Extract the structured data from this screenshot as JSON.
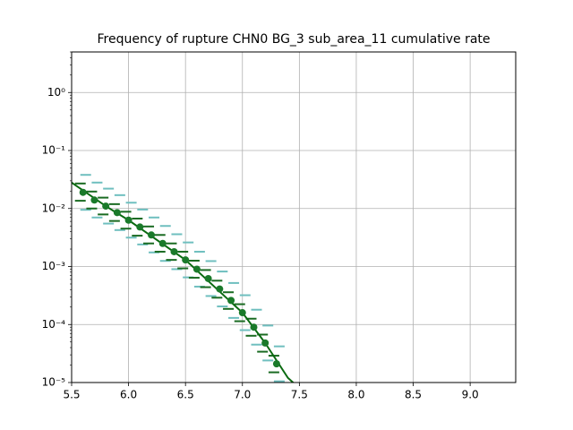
{
  "chart_data": {
    "type": "errorbar",
    "title": "Frequency of rupture CHN0 BG_3 sub_area_11 cumulative rate",
    "x": [
      5.6,
      5.7,
      5.8,
      5.9,
      6.0,
      6.1,
      6.2,
      6.3,
      6.4,
      6.5,
      6.6,
      6.7,
      6.8,
      6.9,
      7.0,
      7.1,
      7.2,
      7.3
    ],
    "values": [
      0.019,
      0.014,
      0.011,
      0.0085,
      0.0063,
      0.0048,
      0.0035,
      0.0025,
      0.0018,
      0.0013,
      0.0009,
      0.00062,
      0.00041,
      0.00026,
      0.00016,
      9e-05,
      4.8e-05,
      2.1e-05
    ],
    "color": "#1a7a2a",
    "inner_low": [
      0.0136,
      0.01,
      0.0079,
      0.0061,
      0.0045,
      0.0034,
      0.0025,
      0.0018,
      0.0013,
      0.00093,
      0.00064,
      0.00044,
      0.00029,
      0.000186,
      0.000114,
      6.4e-05,
      3.4e-05,
      1.5e-05
    ],
    "inner_high": [
      0.027,
      0.0196,
      0.0154,
      0.0119,
      0.0088,
      0.0067,
      0.0049,
      0.0035,
      0.0025,
      0.0018,
      0.00126,
      0.00087,
      0.00057,
      0.00036,
      0.000224,
      0.000126,
      6.7e-05,
      2.9e-05
    ],
    "inner_color": "#1a6b22",
    "outer_low": [
      0.0095,
      0.007,
      0.0055,
      0.00425,
      0.00315,
      0.0024,
      0.00175,
      0.00125,
      0.0009,
      0.00065,
      0.00045,
      0.00031,
      0.000205,
      0.00013,
      8e-05,
      4.5e-05,
      2.4e-05,
      1.05e-05
    ],
    "outer_high": [
      0.038,
      0.028,
      0.022,
      0.017,
      0.0126,
      0.0096,
      0.007,
      0.005,
      0.0036,
      0.0026,
      0.0018,
      0.00124,
      0.00082,
      0.00052,
      0.00032,
      0.00018,
      9.6e-05,
      4.2e-05
    ],
    "outer_color": "#6fbfbf",
    "fit": {
      "x": [
        5.5,
        5.8,
        6.0,
        6.5,
        7.0,
        7.2,
        7.3,
        7.4,
        7.5
      ],
      "values": [
        0.028,
        0.011,
        0.0063,
        0.0013,
        0.00016,
        4.8e-05,
        2.4e-05,
        1.2e-05,
        8e-06
      ],
      "color": "#0a6a10"
    },
    "xlim": [
      5.5,
      9.4
    ],
    "ylim": [
      1e-05,
      5
    ],
    "log_y": true,
    "grid": true,
    "xticks": [
      5.5,
      {
        "value": 6,
        "label": "6.0"
      },
      6.5,
      {
        "value": 7,
        "label": "7.0"
      },
      7.5,
      {
        "value": 8,
        "label": "8.0"
      },
      8.5,
      {
        "value": 9,
        "label": "9.0"
      }
    ],
    "yticks": [
      {
        "value": 1e-05,
        "label": "10⁻⁵"
      },
      {
        "value": 0.0001,
        "label": "10⁻⁴"
      },
      {
        "value": 0.001,
        "label": "10⁻³"
      },
      {
        "value": 0.01,
        "label": "10⁻²"
      },
      {
        "value": 0.1,
        "label": "10⁻¹"
      },
      {
        "value": 1,
        "label": "10⁰"
      }
    ]
  }
}
